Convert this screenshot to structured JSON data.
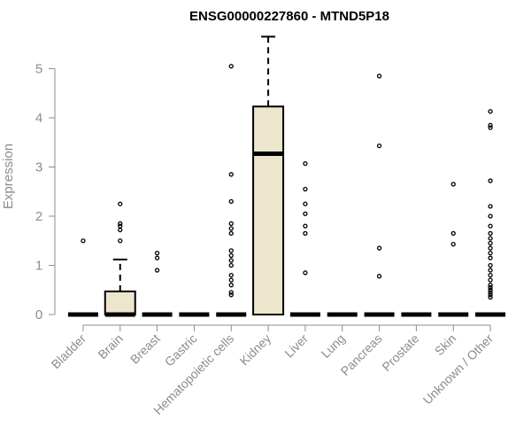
{
  "chart_data": {
    "type": "boxplot",
    "title": "ENSG00000227860 - MTND5P18",
    "xlabel": "",
    "ylabel": "Expression",
    "ylim": [
      0,
      5.75
    ],
    "yticks": [
      0,
      1,
      2,
      3,
      4,
      5
    ],
    "colors": {
      "box_fill": "#ede6cc",
      "line": "#000000",
      "axis": "#8c8c8c"
    },
    "categories": [
      "Bladder",
      "Brain",
      "Breast",
      "Gastric",
      "Hematopoietic cells",
      "Kidney",
      "Liver",
      "Lung",
      "Pancreas",
      "Prostate",
      "Skin",
      "Unknown / Other"
    ],
    "boxes": [
      {
        "category": "Bladder",
        "q1": 0,
        "median": 0,
        "q3": 0,
        "whisker_low": 0,
        "whisker_high": 0,
        "outliers": [
          1.5
        ]
      },
      {
        "category": "Brain",
        "q1": 0,
        "median": 0,
        "q3": 0.47,
        "whisker_low": 0,
        "whisker_high": 1.12,
        "outliers": [
          1.5,
          1.72,
          1.8,
          1.85,
          2.25
        ]
      },
      {
        "category": "Breast",
        "q1": 0,
        "median": 0,
        "q3": 0,
        "whisker_low": 0,
        "whisker_high": 0,
        "outliers": [
          0.9,
          1.15,
          1.25
        ]
      },
      {
        "category": "Gastric",
        "q1": 0,
        "median": 0,
        "q3": 0,
        "whisker_low": 0,
        "whisker_high": 0,
        "outliers": []
      },
      {
        "category": "Hematopoietic cells",
        "q1": 0,
        "median": 0,
        "q3": 0,
        "whisker_low": 0,
        "whisker_high": 0,
        "outliers": [
          0.4,
          0.45,
          0.6,
          0.7,
          0.8,
          1.0,
          1.1,
          1.2,
          1.3,
          1.65,
          1.75,
          1.85,
          2.3,
          2.85,
          5.05
        ]
      },
      {
        "category": "Kidney",
        "q1": 0,
        "median": 3.27,
        "q3": 4.23,
        "whisker_low": 0,
        "whisker_high": 5.65,
        "outliers": []
      },
      {
        "category": "Liver",
        "q1": 0,
        "median": 0,
        "q3": 0,
        "whisker_low": 0,
        "whisker_high": 0,
        "outliers": [
          0.85,
          1.65,
          1.8,
          2.05,
          2.25,
          2.55,
          3.07
        ]
      },
      {
        "category": "Lung",
        "q1": 0,
        "median": 0,
        "q3": 0,
        "whisker_low": 0,
        "whisker_high": 0,
        "outliers": []
      },
      {
        "category": "Pancreas",
        "q1": 0,
        "median": 0,
        "q3": 0,
        "whisker_low": 0,
        "whisker_high": 0,
        "outliers": [
          0.78,
          1.35,
          3.43,
          4.85
        ]
      },
      {
        "category": "Prostate",
        "q1": 0,
        "median": 0,
        "q3": 0,
        "whisker_low": 0,
        "whisker_high": 0,
        "outliers": []
      },
      {
        "category": "Skin",
        "q1": 0,
        "median": 0,
        "q3": 0,
        "whisker_low": 0,
        "whisker_high": 0,
        "outliers": [
          1.43,
          1.65,
          2.65
        ]
      },
      {
        "category": "Unknown / Other",
        "q1": 0,
        "median": 0,
        "q3": 0,
        "whisker_low": 0,
        "whisker_high": 0,
        "outliers": [
          0.35,
          0.4,
          0.45,
          0.5,
          0.55,
          0.6,
          0.7,
          0.8,
          0.9,
          1.0,
          1.15,
          1.25,
          1.35,
          1.45,
          1.55,
          1.65,
          1.8,
          2.0,
          2.2,
          2.72,
          3.8,
          3.85,
          4.13
        ]
      }
    ]
  }
}
